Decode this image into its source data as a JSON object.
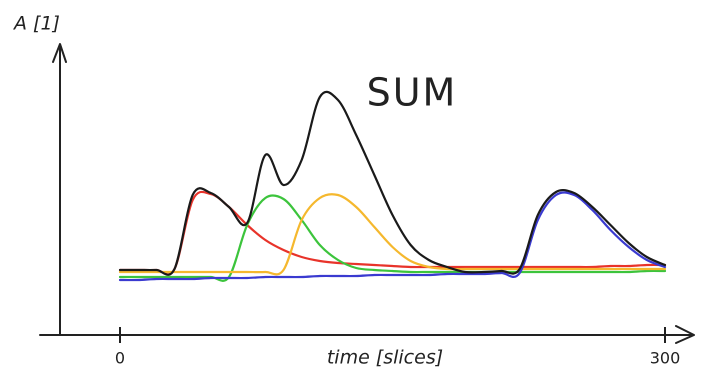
{
  "chart_data": {
    "type": "line",
    "y_label": "A [1]",
    "x_label": "time [slices]",
    "annotation": "SUM",
    "xlim": [
      0,
      300
    ],
    "ylim": [
      0,
      300
    ],
    "xticks": [
      0,
      300
    ],
    "x": [
      0,
      10,
      20,
      30,
      40,
      50,
      60,
      70,
      80,
      90,
      100,
      110,
      120,
      130,
      140,
      150,
      160,
      170,
      180,
      190,
      200,
      210,
      220,
      230,
      240,
      250,
      260,
      270,
      280,
      290,
      300
    ],
    "series": [
      {
        "color": "#e8332a",
        "values": [
          65,
          65,
          65,
          66,
          135,
          141,
          128,
          110,
          95,
          85,
          78,
          74,
          72,
          71,
          70,
          69,
          68,
          68,
          68,
          68,
          68,
          68,
          68,
          68,
          68,
          68,
          68,
          69,
          69,
          70,
          70
        ]
      },
      {
        "color": "#3cc43c",
        "values": [
          58,
          58,
          58,
          58,
          58,
          58,
          58,
          110,
          137,
          136,
          115,
          90,
          75,
          67,
          65,
          64,
          63,
          63,
          63,
          63,
          63,
          63,
          63,
          63,
          63,
          63,
          63,
          63,
          63,
          64,
          64
        ]
      },
      {
        "color": "#f5b82e",
        "values": [
          63,
          63,
          63,
          63,
          63,
          63,
          63,
          63,
          63,
          65,
          115,
          137,
          140,
          128,
          108,
          88,
          74,
          68,
          66,
          66,
          66,
          66,
          66,
          66,
          66,
          66,
          66,
          66,
          66,
          66,
          66
        ]
      },
      {
        "color": "#3a3ad0",
        "values": [
          55,
          55,
          56,
          56,
          56,
          57,
          57,
          57,
          58,
          58,
          58,
          59,
          59,
          59,
          60,
          60,
          60,
          60,
          61,
          61,
          61,
          62,
          62,
          115,
          140,
          140,
          125,
          105,
          88,
          75,
          68
        ]
      },
      {
        "color": "#1a1a1a",
        "values": [
          65,
          65,
          65,
          66,
          140,
          142,
          128,
          112,
          180,
          150,
          175,
          238,
          235,
          200,
          160,
          120,
          90,
          75,
          68,
          63,
          63,
          64,
          66,
          120,
          143,
          142,
          128,
          110,
          92,
          78,
          70
        ]
      }
    ]
  }
}
